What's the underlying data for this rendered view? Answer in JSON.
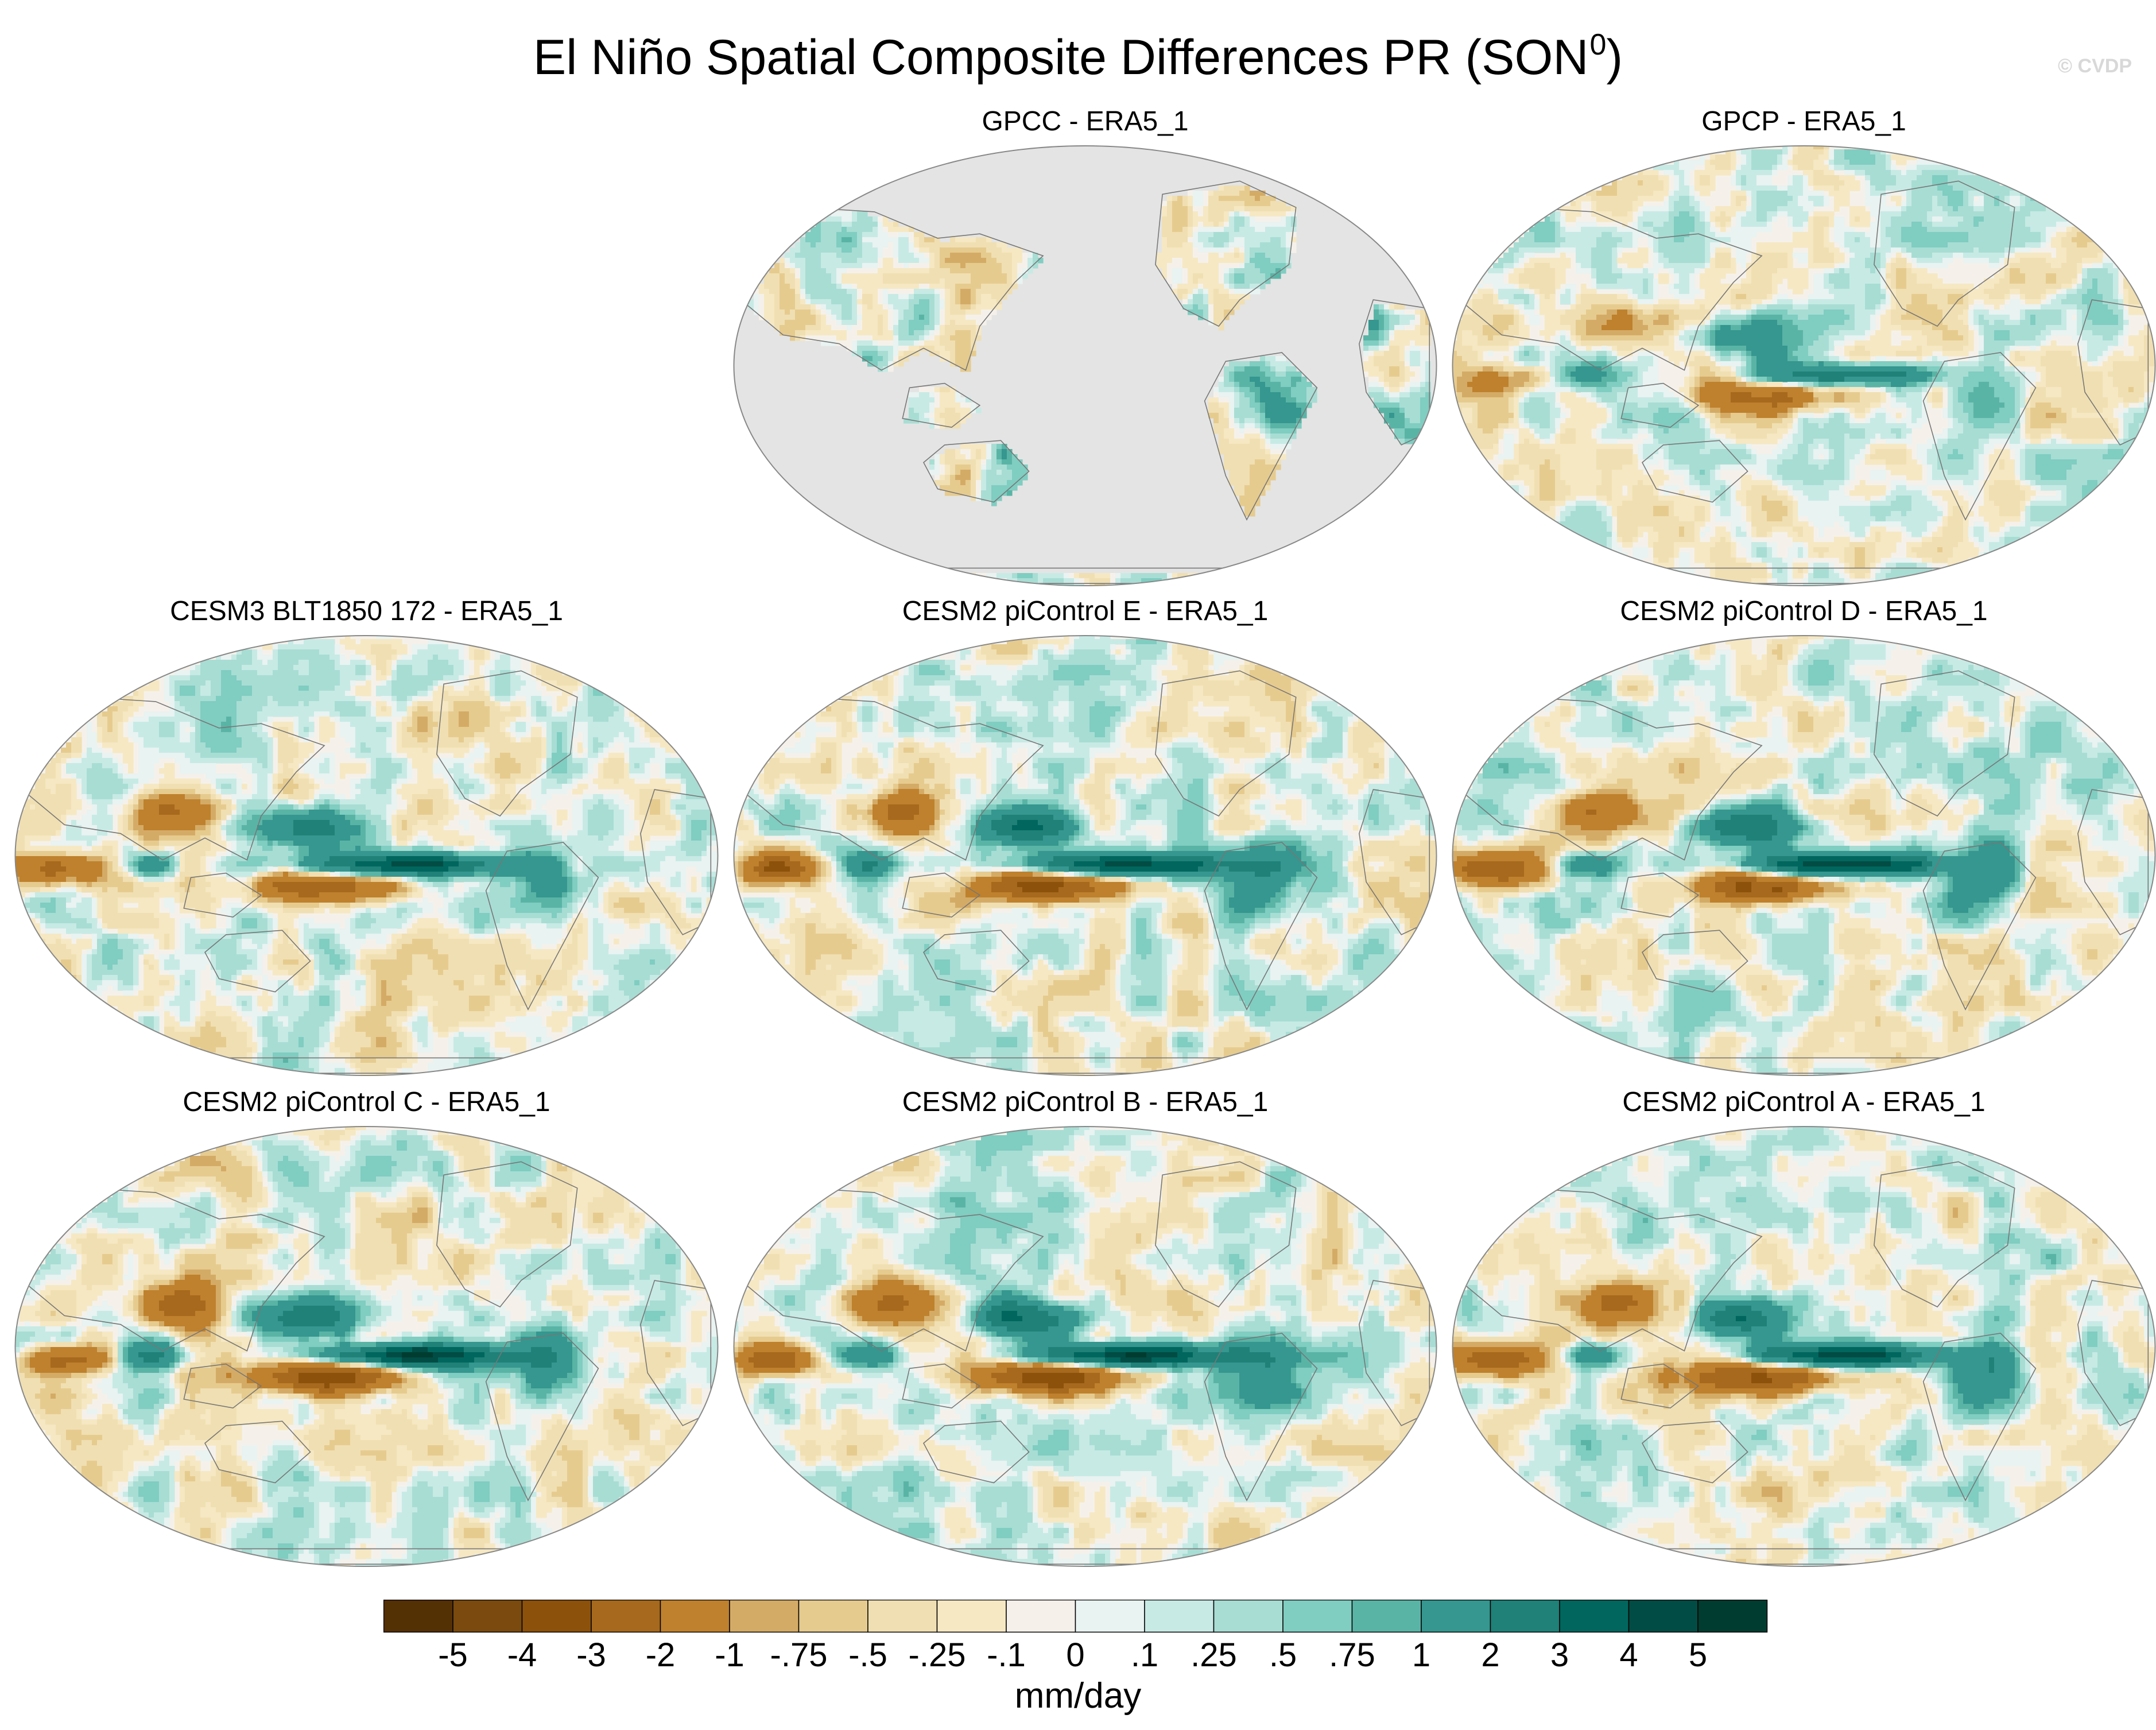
{
  "title": "El Niño Spatial Composite Differences PR (SON",
  "title_superscript": "0",
  "title_close": ")",
  "watermark": "© CVDP",
  "panels": [
    {
      "id": "gpcc",
      "title": "GPCC - ERA5_1",
      "style": "land-only",
      "seed": 11,
      "enso": 0.25
    },
    {
      "id": "gpcp",
      "title": "GPCP - ERA5_1",
      "style": "full",
      "seed": 23,
      "enso": 0.7
    },
    {
      "id": "cesm3",
      "title": "CESM3 BLT1850 172 - ERA5_1",
      "style": "full",
      "seed": 37,
      "enso": 1.0
    },
    {
      "id": "e",
      "title": "CESM2 piControl E - ERA5_1",
      "style": "full",
      "seed": 41,
      "enso": 1.1
    },
    {
      "id": "d",
      "title": "CESM2 piControl D - ERA5_1",
      "style": "full",
      "seed": 53,
      "enso": 1.1
    },
    {
      "id": "c",
      "title": "CESM2 piControl C - ERA5_1",
      "style": "full",
      "seed": 67,
      "enso": 1.15
    },
    {
      "id": "b",
      "title": "CESM2 piControl B - ERA5_1",
      "style": "full",
      "seed": 71,
      "enso": 1.2
    },
    {
      "id": "a",
      "title": "CESM2 piControl A - ERA5_1",
      "style": "full",
      "seed": 83,
      "enso": 1.1
    }
  ],
  "colorbar": {
    "colors": [
      "#543005",
      "#7a4a0e",
      "#8c510a",
      "#a6691d",
      "#bf812d",
      "#d4ab66",
      "#e6cb8f",
      "#f0dfb2",
      "#f6e8c3",
      "#f5f1ea",
      "#e9f3f1",
      "#c7eae5",
      "#a8ddd4",
      "#80cdc1",
      "#5ab4a6",
      "#35978f",
      "#1f8178",
      "#01665e",
      "#014c44",
      "#003c30"
    ],
    "labels": [
      "-5",
      "-4",
      "-3",
      "-2",
      "-1",
      "-.75",
      "-.5",
      "-.25",
      "-.1",
      "0",
      ".1",
      ".25",
      ".5",
      ".75",
      "1",
      "2",
      "3",
      "4",
      "5"
    ],
    "units": "mm/day"
  }
}
